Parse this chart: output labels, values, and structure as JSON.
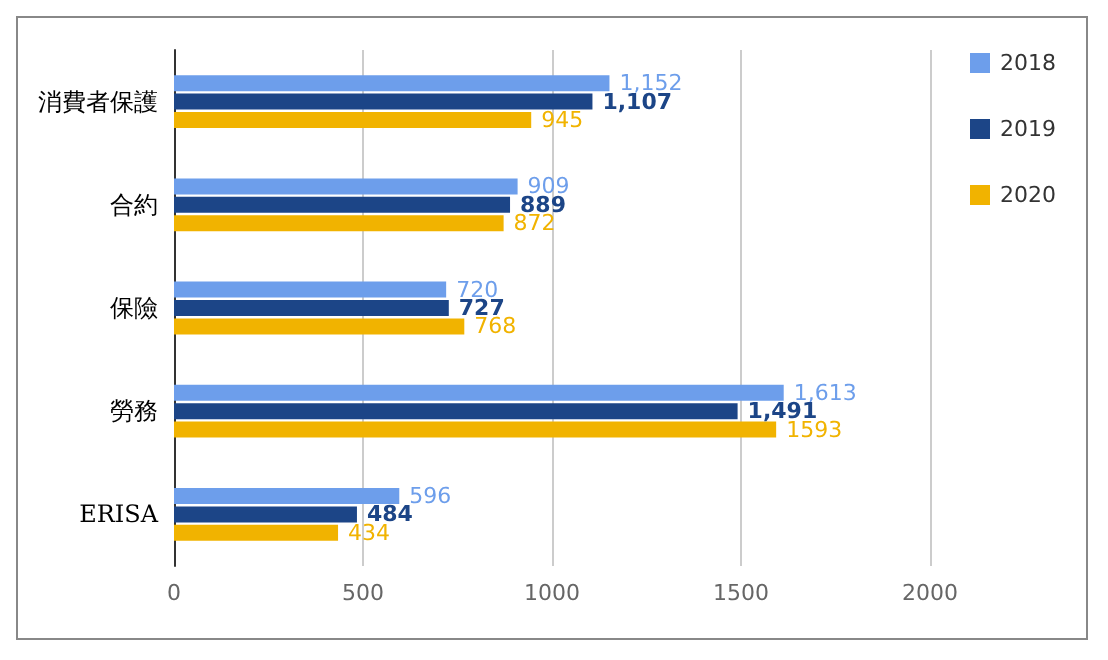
{
  "chart_data": {
    "type": "bar",
    "orientation": "horizontal",
    "categories": [
      "消費者保護",
      "合約",
      "保險",
      "勞務",
      "ERISA"
    ],
    "series": [
      {
        "name": "2018",
        "color": "#6d9eeb",
        "values": [
          1152,
          909,
          720,
          1613,
          596
        ],
        "value_labels": [
          "1,152",
          "909",
          "720",
          "1,613",
          "596"
        ]
      },
      {
        "name": "2019",
        "color": "#1c4587",
        "values": [
          1107,
          889,
          727,
          1491,
          484
        ],
        "value_labels": [
          "1,107",
          "889",
          "727",
          "1,491",
          "484"
        ]
      },
      {
        "name": "2020",
        "color": "#f1b300",
        "values": [
          945,
          872,
          768,
          1593,
          434
        ],
        "value_labels": [
          "945",
          "872",
          "768",
          "1593",
          "434"
        ]
      }
    ],
    "xlim": [
      0,
      2000
    ],
    "xticks": [
      0,
      500,
      1000,
      1500,
      2000
    ],
    "grid": "x",
    "legend": "top right"
  }
}
